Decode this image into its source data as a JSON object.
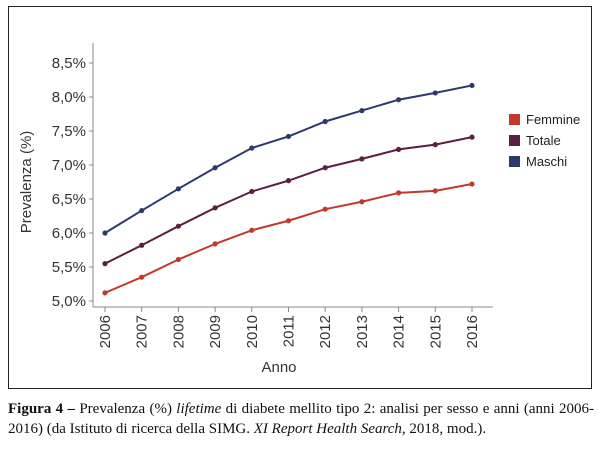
{
  "chart_data": {
    "type": "line",
    "title": "",
    "xlabel": "Anno",
    "ylabel": "Prevalenza (%)",
    "categories": [
      "2006",
      "2007",
      "2008",
      "2009",
      "2010",
      "2011",
      "2012",
      "2013",
      "2014",
      "2015",
      "2016"
    ],
    "yticks": [
      "5,0%",
      "5,5%",
      "6,0%",
      "6,5%",
      "7,0%",
      "7,5%",
      "8,0%",
      "8,5%"
    ],
    "ylim": [
      5.0,
      8.5
    ],
    "grid": false,
    "legend_position": "right",
    "series": [
      {
        "name": "Femmine",
        "color": "#c0392b",
        "values": [
          5.12,
          5.35,
          5.61,
          5.84,
          6.04,
          6.18,
          6.35,
          6.46,
          6.59,
          6.62,
          6.72
        ]
      },
      {
        "name": "Totale",
        "color": "#5b1f42",
        "values": [
          5.55,
          5.82,
          6.1,
          6.37,
          6.61,
          6.77,
          6.96,
          7.09,
          7.23,
          7.3,
          7.41
        ]
      },
      {
        "name": "Maschi",
        "color": "#2c3a6b",
        "values": [
          6.0,
          6.33,
          6.65,
          6.96,
          7.25,
          7.42,
          7.64,
          7.8,
          7.96,
          8.06,
          8.17
        ]
      }
    ]
  },
  "caption": {
    "label": "Figura 4 –",
    "text_before": " Prevalenza (%) ",
    "italic_term": "lifetime",
    "text_middle": " di diabete mellito tipo 2: analisi per sesso e anni (anni 2006-2016) (da Istituto di ricerca della SIMG. ",
    "italic_source": "XI Report Health Search",
    "text_after": ", 2018, mod.)."
  }
}
